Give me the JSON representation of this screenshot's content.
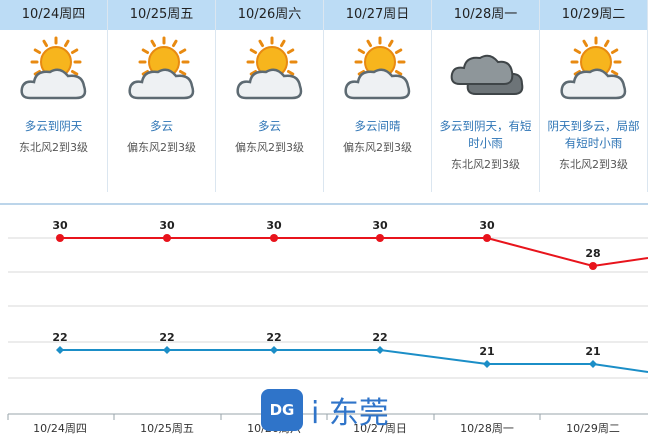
{
  "days": [
    {
      "date": "10/24周四",
      "desc": "多云到阴天",
      "wind": "东北风2到3级",
      "icon": "partly-cloudy-sun-icon"
    },
    {
      "date": "10/25周五",
      "desc": "多云",
      "wind": "偏东风2到3级",
      "icon": "partly-cloudy-sun-icon"
    },
    {
      "date": "10/26周六",
      "desc": "多云",
      "wind": "偏东风2到3级",
      "icon": "partly-cloudy-sun-icon"
    },
    {
      "date": "10/27周日",
      "desc": "多云间晴",
      "wind": "偏东风2到3级",
      "icon": "partly-cloudy-sun-icon"
    },
    {
      "date": "10/28周一",
      "desc": "多云到阴天，有短时小雨",
      "wind": "东北风2到3级",
      "icon": "overcast-cloud-icon"
    },
    {
      "date": "10/29周二",
      "desc": "阴天到多云，局部有短时小雨",
      "wind": "东北风2到3级",
      "icon": "partly-cloudy-sun-icon"
    }
  ],
  "chart_data": {
    "type": "line",
    "categories": [
      "10/24周四",
      "10/25周五",
      "10/26周六",
      "10/27周日",
      "10/28周一",
      "10/29周二"
    ],
    "series": [
      {
        "values": [
          30,
          30,
          30,
          30,
          30,
          28
        ],
        "color": "#e8141c"
      },
      {
        "values": [
          22,
          22,
          22,
          22,
          21,
          21
        ],
        "color": "#1b8ec7"
      }
    ]
  },
  "watermark": {
    "logo": "DG",
    "text": "i 东莞"
  }
}
